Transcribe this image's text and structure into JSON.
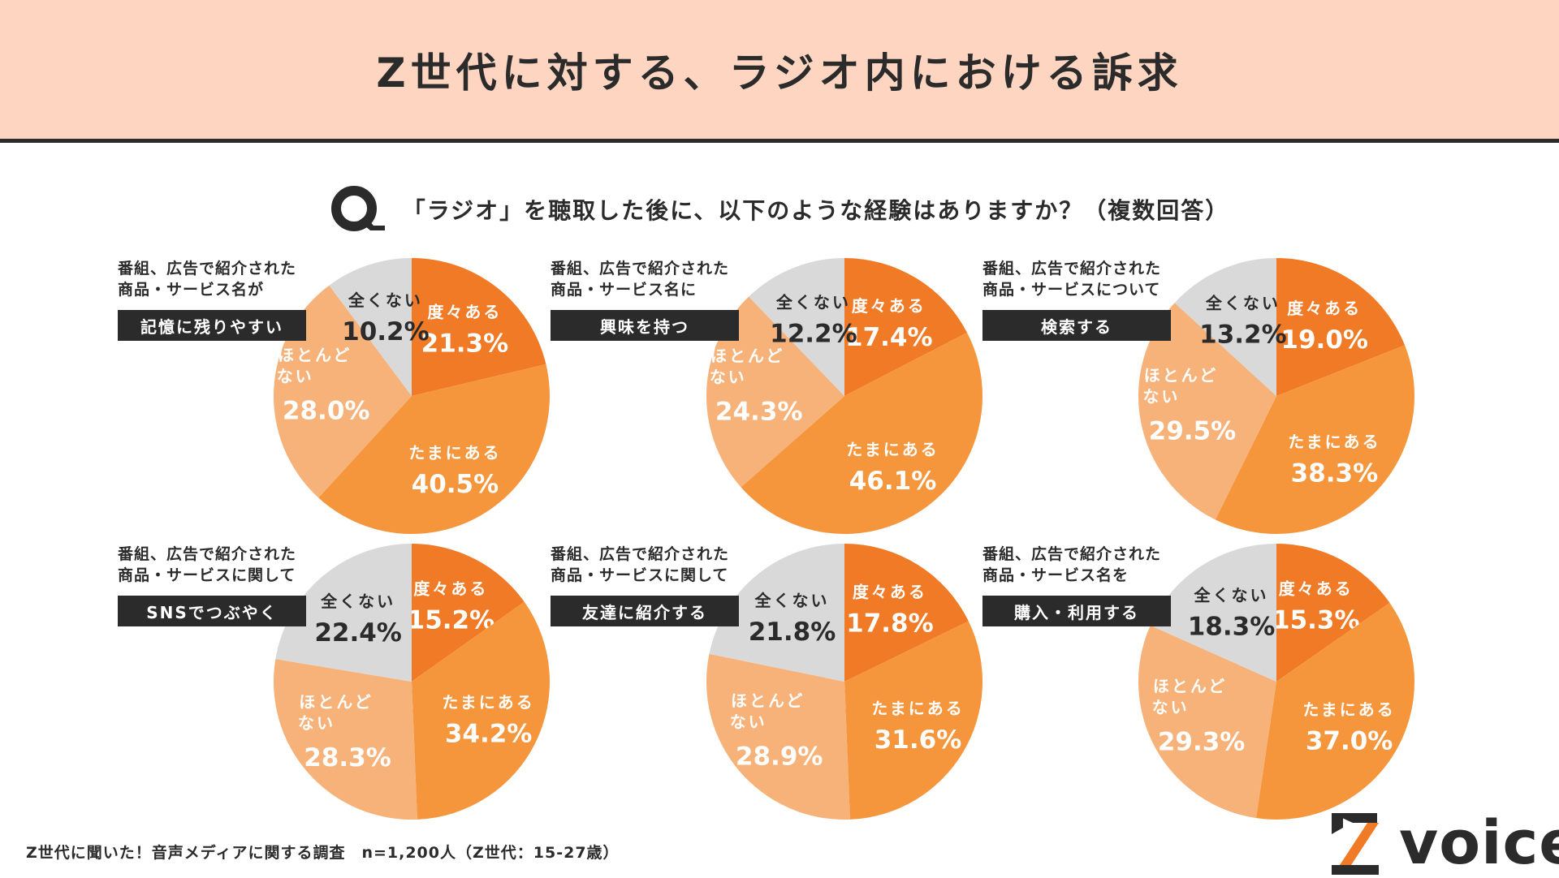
{
  "header": {
    "title": "Z世代に対する、ラジオ内における訴求"
  },
  "question": {
    "prefix": "Q",
    "text": "「ラジオ」を聴取した後に、以下のような経験はありますか？（複数回答）"
  },
  "colors": {
    "often": "#f07a25",
    "sometimes": "#f5963d",
    "rarely": "#f7b27a",
    "never": "#d9d9d9",
    "label_box": "#2b2b2b",
    "header_bg": "#fdd5c0"
  },
  "chart_data": [
    {
      "type": "pie",
      "title_lines": [
        "番組、広告で紹介された",
        "商品・サービス名が"
      ],
      "title_highlight": "記憶に残りやすい",
      "categories": [
        "度々ある",
        "たまにある",
        "ほとんどない",
        "全くない"
      ],
      "values": [
        21.3,
        40.5,
        28.0,
        10.2
      ],
      "labels": [
        "21.3%",
        "40.5%",
        "28.0%",
        "10.2%"
      ]
    },
    {
      "type": "pie",
      "title_lines": [
        "番組、広告で紹介された",
        "商品・サービス名に"
      ],
      "title_highlight": "興味を持つ",
      "categories": [
        "度々ある",
        "たまにある",
        "ほとんどない",
        "全くない"
      ],
      "values": [
        17.4,
        46.1,
        24.3,
        12.2
      ],
      "labels": [
        "17.4%",
        "46.1%",
        "24.3%",
        "12.2%"
      ]
    },
    {
      "type": "pie",
      "title_lines": [
        "番組、広告で紹介された",
        "商品・サービスについて"
      ],
      "title_highlight": "検索する",
      "categories": [
        "度々ある",
        "たまにある",
        "ほとんどない",
        "全くない"
      ],
      "values": [
        19.0,
        38.3,
        29.5,
        13.2
      ],
      "labels": [
        "19.0%",
        "38.3%",
        "29.5%",
        "13.2%"
      ]
    },
    {
      "type": "pie",
      "title_lines": [
        "番組、広告で紹介された",
        "商品・サービスに関して"
      ],
      "title_highlight": "SNSでつぶやく",
      "categories": [
        "度々ある",
        "たまにある",
        "ほとんどない",
        "全くない"
      ],
      "values": [
        15.2,
        34.2,
        28.3,
        22.4
      ],
      "labels": [
        "15.2%",
        "34.2%",
        "28.3%",
        "22.4%"
      ]
    },
    {
      "type": "pie",
      "title_lines": [
        "番組、広告で紹介された",
        "商品・サービスに関して"
      ],
      "title_highlight": "友達に紹介する",
      "categories": [
        "度々ある",
        "たまにある",
        "ほとんどない",
        "全くない"
      ],
      "values": [
        17.8,
        31.6,
        28.9,
        21.8
      ],
      "labels": [
        "17.8%",
        "31.6%",
        "28.9%",
        "21.8%"
      ]
    },
    {
      "type": "pie",
      "title_lines": [
        "番組、広告で紹介された",
        "商品・サービス名を"
      ],
      "title_highlight": "購入・利用する",
      "categories": [
        "度々ある",
        "たまにある",
        "ほとんどない",
        "全くない"
      ],
      "values": [
        15.3,
        37.0,
        29.3,
        18.3
      ],
      "labels": [
        "15.3%",
        "37.0%",
        "29.3%",
        "18.3%"
      ]
    }
  ],
  "footer": {
    "note": "Z世代に聞いた！音声メディアに関する調査　n=1,200人（Z世代：15-27歳）"
  },
  "logo": {
    "text": "voice",
    "mark": "Z"
  }
}
